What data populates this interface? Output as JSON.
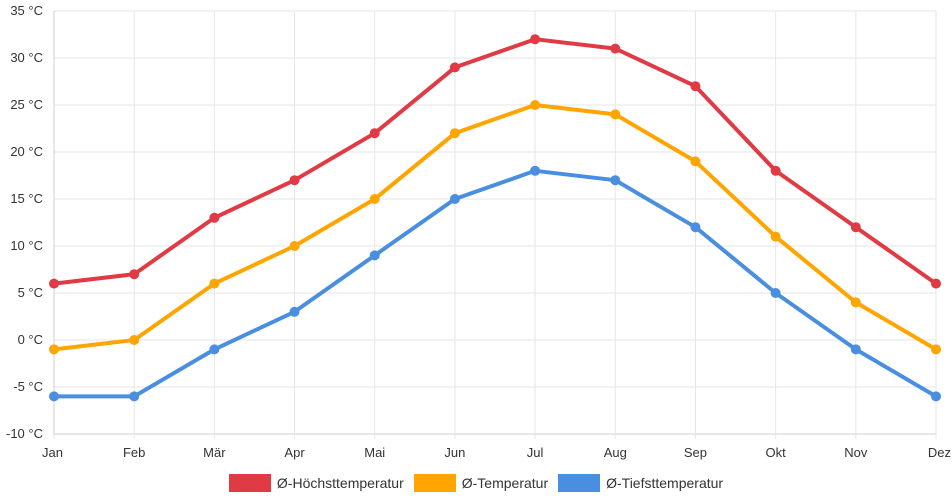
{
  "chart_data": {
    "type": "line",
    "categories": [
      "Jan",
      "Feb",
      "Mär",
      "Apr",
      "Mai",
      "Jun",
      "Jul",
      "Aug",
      "Sep",
      "Okt",
      "Nov",
      "Dez"
    ],
    "y_ticks": [
      "35 °C",
      "30 °C",
      "25 °C",
      "20 °C",
      "15 °C",
      "10 °C",
      "5 °C",
      "0 °C",
      "-5 °C",
      "-10 °C"
    ],
    "ylim": [
      -10,
      35
    ],
    "y_step": 5,
    "grid": true,
    "legend_position": "bottom",
    "series": [
      {
        "name": "Ø-Höchsttemperatur",
        "color": "#e03a45",
        "values": [
          6,
          7,
          13,
          17,
          22,
          29,
          32,
          31,
          27,
          18,
          12,
          6
        ]
      },
      {
        "name": "Ø-Temperatur",
        "color": "#ffa500",
        "values": [
          -1,
          0,
          6,
          10,
          15,
          22,
          25,
          24,
          19,
          11,
          4,
          -1
        ]
      },
      {
        "name": "Ø-Tiefsttemperatur",
        "color": "#4a8fdf",
        "values": [
          -6,
          -6,
          -1,
          3,
          9,
          15,
          18,
          17,
          12,
          5,
          -1,
          -6
        ]
      }
    ]
  }
}
